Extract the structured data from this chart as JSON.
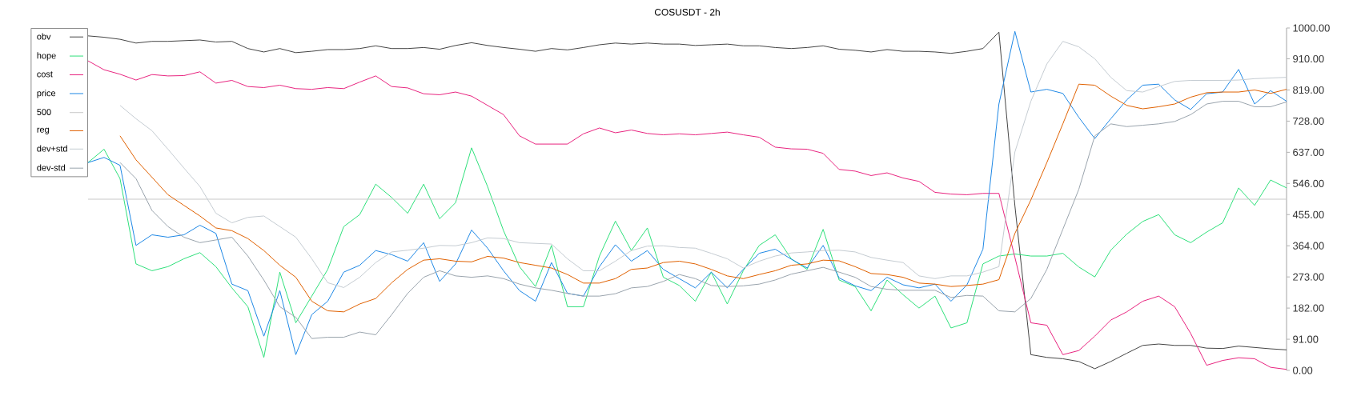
{
  "chart_data": {
    "type": "line",
    "title": "COSUSDT - 2h",
    "categories": [
      null,
      null,
      null,
      null,
      null,
      null,
      null,
      null,
      null,
      null,
      null,
      null,
      null,
      null,
      null,
      null,
      null,
      null,
      null,
      null,
      null,
      null,
      null,
      null,
      null,
      null,
      null,
      null,
      null,
      null,
      null,
      null,
      null,
      null,
      null,
      null,
      null,
      null,
      null,
      null,
      null,
      null,
      null,
      null,
      null,
      null,
      null,
      null,
      null,
      null,
      null,
      null,
      null,
      null,
      null,
      null,
      null,
      null,
      null,
      null,
      null,
      null,
      null,
      null,
      null,
      null,
      null,
      null,
      null,
      null,
      null,
      null,
      null,
      null,
      null,
      null
    ],
    "series": [
      {
        "name": "obv",
        "color": "#444444",
        "values": [
          977,
          973,
          967,
          956,
          961,
          961,
          963,
          965,
          959,
          961,
          940,
          930,
          940,
          928,
          932,
          937,
          937,
          940,
          948,
          940,
          940,
          943,
          938,
          949,
          957,
          949,
          943,
          938,
          932,
          940,
          936,
          943,
          951,
          956,
          953,
          956,
          953,
          953,
          949,
          951,
          953,
          948,
          948,
          943,
          940,
          943,
          948,
          938,
          935,
          930,
          937,
          932,
          932,
          930,
          926,
          932,
          940,
          988,
          481,
          46,
          38,
          34,
          26,
          5,
          26,
          50,
          73,
          77,
          73,
          73,
          65,
          64,
          71,
          67,
          63,
          60
        ]
      },
      {
        "name": "hope",
        "color": "#2ee07a",
        "values": [
          607,
          646,
          560,
          311,
          291,
          303,
          326,
          344,
          303,
          241,
          186,
          38,
          287,
          139,
          217,
          295,
          420,
          455,
          544,
          505,
          459,
          544,
          443,
          490,
          650,
          537,
          408,
          303,
          245,
          365,
          186,
          186,
          334,
          436,
          350,
          416,
          272,
          248,
          202,
          287,
          194,
          291,
          365,
          396,
          326,
          295,
          412,
          264,
          245,
          174,
          264,
          221,
          182,
          217,
          124,
          139,
          311,
          334,
          340,
          334,
          334,
          342,
          302,
          273,
          351,
          398,
          435,
          455,
          396,
          373,
          404,
          431,
          533,
          482,
          556,
          533
        ]
      },
      {
        "name": "cost",
        "color": "#e8247f",
        "values": [
          904,
          878,
          865,
          848,
          864,
          860,
          861,
          872,
          839,
          847,
          829,
          826,
          833,
          823,
          821,
          826,
          823,
          842,
          860,
          829,
          825,
          808,
          805,
          813,
          801,
          774,
          747,
          685,
          661,
          661,
          661,
          691,
          708,
          694,
          702,
          692,
          688,
          691,
          688,
          692,
          696,
          688,
          681,
          652,
          647,
          646,
          634,
          587,
          582,
          569,
          577,
          562,
          552,
          520,
          515,
          513,
          517,
          517,
          330,
          139,
          132,
          46,
          58,
          100,
          147,
          171,
          202,
          217,
          186,
          108,
          15,
          29,
          37,
          34,
          9,
          3
        ]
      },
      {
        "name": "price",
        "color": "#1e88e5",
        "values": [
          607,
          622,
          599,
          365,
          396,
          389,
          396,
          424,
          400,
          252,
          233,
          100,
          233,
          46,
          163,
          202,
          287,
          307,
          350,
          338,
          319,
          373,
          260,
          311,
          410,
          357,
          291,
          233,
          202,
          315,
          225,
          217,
          303,
          367,
          319,
          350,
          295,
          268,
          241,
          287,
          241,
          295,
          342,
          354,
          325,
          299,
          365,
          270,
          247,
          233,
          272,
          250,
          241,
          252,
          202,
          250,
          354,
          778,
          990,
          813,
          821,
          809,
          739,
          677,
          735,
          790,
          833,
          836,
          790,
          762,
          808,
          813,
          879,
          778,
          817,
          786
        ]
      },
      {
        "name": "500",
        "color": "#c8c8c8",
        "values": [
          500,
          500,
          500,
          500,
          500,
          500,
          500,
          500,
          500,
          500,
          500,
          500,
          500,
          500,
          500,
          500,
          500,
          500,
          500,
          500,
          500,
          500,
          500,
          500,
          500,
          500,
          500,
          500,
          500,
          500,
          500,
          500,
          500,
          500,
          500,
          500,
          500,
          500,
          500,
          500,
          500,
          500,
          500,
          500,
          500,
          500,
          500,
          500,
          500,
          500,
          500,
          500,
          500,
          500,
          500,
          500,
          500,
          500,
          500,
          500,
          500,
          500,
          500,
          500,
          500,
          500,
          500,
          500,
          500,
          500,
          500,
          500,
          500,
          500,
          500,
          500
        ]
      },
      {
        "name": "reg",
        "color": "#e06000",
        "values": [
          null,
          null,
          685,
          615,
          564,
          513,
          482,
          451,
          416,
          408,
          385,
          350,
          307,
          272,
          202,
          174,
          171,
          194,
          210,
          256,
          295,
          322,
          326,
          319,
          317,
          333,
          328,
          315,
          307,
          299,
          280,
          255,
          255,
          268,
          295,
          299,
          315,
          319,
          311,
          295,
          276,
          268,
          280,
          291,
          307,
          311,
          322,
          320,
          303,
          283,
          280,
          272,
          255,
          252,
          245,
          248,
          252,
          265,
          400,
          498,
          607,
          720,
          836,
          833,
          801,
          774,
          764,
          770,
          778,
          798,
          811,
          813,
          813,
          819,
          809,
          821
        ]
      },
      {
        "name": "dev+std",
        "color": "#c5ccd2",
        "values": [
          null,
          null,
          774,
          735,
          700,
          646,
          591,
          537,
          459,
          431,
          447,
          451,
          420,
          389,
          326,
          256,
          242,
          272,
          315,
          346,
          351,
          357,
          365,
          364,
          373,
          387,
          385,
          373,
          371,
          369,
          326,
          291,
          291,
          319,
          350,
          363,
          364,
          359,
          357,
          342,
          326,
          299,
          319,
          334,
          343,
          346,
          350,
          351,
          346,
          330,
          322,
          315,
          276,
          268,
          276,
          276,
          287,
          303,
          638,
          786,
          895,
          961,
          945,
          910,
          856,
          817,
          813,
          829,
          844,
          847,
          847,
          847,
          848,
          852,
          854,
          856
        ]
      },
      {
        "name": "dev-std",
        "color": "#9aa4ad",
        "values": [
          null,
          null,
          607,
          560,
          467,
          420,
          389,
          373,
          381,
          389,
          334,
          264,
          186,
          155,
          93,
          97,
          97,
          112,
          104,
          163,
          225,
          272,
          291,
          276,
          272,
          276,
          268,
          252,
          241,
          234,
          225,
          217,
          217,
          224,
          241,
          245,
          260,
          280,
          268,
          248,
          245,
          247,
          252,
          264,
          281,
          291,
          301,
          287,
          272,
          245,
          237,
          234,
          234,
          234,
          213,
          219,
          217,
          174,
          171,
          210,
          295,
          412,
          529,
          685,
          720,
          712,
          716,
          720,
          727,
          747,
          778,
          786,
          786,
          770,
          770,
          784
        ]
      }
    ],
    "ylim": [
      0,
      1000
    ],
    "yticks": [
      {
        "value": 0,
        "label": "0.00"
      },
      {
        "value": 91,
        "label": "91.00"
      },
      {
        "value": 182,
        "label": "182.00"
      },
      {
        "value": 273,
        "label": "273.00"
      },
      {
        "value": 364,
        "label": "364.00"
      },
      {
        "value": 455,
        "label": "455.00"
      },
      {
        "value": 546,
        "label": "546.00"
      },
      {
        "value": 637,
        "label": "637.00"
      },
      {
        "value": 728,
        "label": "728.00"
      },
      {
        "value": 819,
        "label": "819.00"
      },
      {
        "value": 910,
        "label": "910.00"
      },
      {
        "value": 1000,
        "label": "1000.00"
      }
    ],
    "tick_labels": "y",
    "legend": "top left",
    "marker": "none",
    "line_style": "solid"
  }
}
